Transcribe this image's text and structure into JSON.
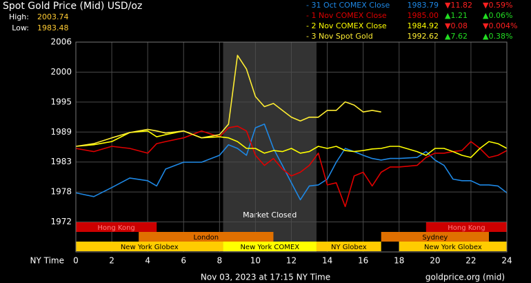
{
  "chart_data": {
    "type": "line",
    "title": "Spot Gold Price (Mid) USD/oz",
    "high": {
      "label": "High:",
      "value": 2003.74
    },
    "low": {
      "label": "Low:",
      "value": 1983.48
    },
    "x_label": "NY Time",
    "footer": "Nov 03, 2023 at 17:15 NY Time",
    "source": "goldprice.org (mid)",
    "xlim": [
      0,
      24
    ],
    "xticks": [
      0,
      2,
      4,
      6,
      8,
      10,
      12,
      14,
      16,
      18,
      20,
      22,
      24
    ],
    "ylim": [
      1966.33,
      2006
    ],
    "yticks": [
      {
        "value": 2006,
        "label": "2006"
      },
      {
        "value": 2000.33,
        "label": "2000"
      },
      {
        "value": 1994.67,
        "label": "1995"
      },
      {
        "value": 1989,
        "label": "1989"
      },
      {
        "value": 1983.33,
        "label": "1983"
      },
      {
        "value": 1977.67,
        "label": "1978"
      },
      {
        "value": 1972,
        "label": "1972"
      }
    ],
    "grid": true,
    "closed": {
      "label": "Market Closed",
      "start": 8.2,
      "end": 13.4,
      "color": "#333333"
    },
    "sessions": [
      {
        "label": "Hong Kong",
        "start": 0,
        "end": 4.5,
        "row": 0,
        "color": "#cc0000"
      },
      {
        "label": "Hong Kong",
        "start": 19.5,
        "end": 24,
        "row": 0,
        "color": "#cc0000"
      },
      {
        "label": "London",
        "start": 3.5,
        "end": 11,
        "row": 1,
        "color": "#e07000"
      },
      {
        "label": "Sydney",
        "start": 17,
        "end": 23,
        "row": 1,
        "color": "#e07000"
      },
      {
        "label": "New York Globex",
        "start": 0,
        "end": 8.2,
        "row": 2,
        "color": "#ffcc00"
      },
      {
        "label": "New York COMEX",
        "start": 8.2,
        "end": 13.4,
        "row": 2,
        "color": "#ffff00"
      },
      {
        "label": "NY Globex",
        "start": 13.4,
        "end": 17,
        "row": 2,
        "color": "#ffcc00"
      },
      {
        "label": "New York Globex",
        "start": 18,
        "end": 24,
        "row": 2,
        "color": "#ffcc00"
      }
    ],
    "x": [
      0,
      1,
      2,
      3,
      4,
      4.5,
      5,
      6,
      7,
      8,
      8.5,
      9,
      9.5,
      10,
      10.5,
      11,
      11.5,
      12,
      12.5,
      13,
      13.5,
      14,
      14.5,
      15,
      15.5,
      16,
      16.5,
      17,
      17.5,
      18,
      19,
      19.5,
      20,
      20.5,
      21,
      21.5,
      22,
      22.5,
      23,
      23.5,
      24
    ],
    "series": [
      {
        "name": "- 31 Oct COMEX Close",
        "color": "#1e88e5",
        "price": "1983.79",
        "change": "▼11.82",
        "change_color": "#ff2020",
        "pct": "▼0.59%",
        "pct_color": "#ff2020",
        "values": [
          1977.5,
          1976.8,
          1978.5,
          1980.3,
          1979.8,
          1978.8,
          1982.0,
          1983.3,
          1983.3,
          1984.6,
          1986.6,
          1985.9,
          1984.6,
          1989.8,
          1990.5,
          1985.9,
          1982.7,
          1979.4,
          1976.2,
          1978.8,
          1979.0,
          1980.1,
          1983.3,
          1985.9,
          1985.3,
          1984.6,
          1984.0,
          1983.7,
          1984.0,
          1984.0,
          1984.2,
          1985.3,
          1983.7,
          1982.7,
          1980.1,
          1979.8,
          1979.8,
          1979.0,
          1979.0,
          1978.8,
          1977.5
        ]
      },
      {
        "name": "- 1 Nov COMEX Close",
        "color": "#e00000",
        "price": "1985.00",
        "change": "▲1.21",
        "change_color": "#22dd22",
        "pct": "▲0.06%",
        "pct_color": "#22dd22",
        "values": [
          1985.9,
          1985.3,
          1986.3,
          1985.9,
          1985.0,
          1986.8,
          1987.2,
          1987.9,
          1989.2,
          1988.1,
          1989.8,
          1990.1,
          1989.2,
          1984.6,
          1982.7,
          1984.0,
          1982.0,
          1980.7,
          1981.4,
          1982.7,
          1985.0,
          1979.0,
          1979.4,
          1974.9,
          1980.7,
          1981.4,
          1978.8,
          1981.4,
          1982.4,
          1982.4,
          1982.7,
          1984.2,
          1985.0,
          1985.0,
          1985.3,
          1985.5,
          1987.2,
          1985.9,
          1984.2,
          1984.6,
          1985.5
        ]
      },
      {
        "name": "- 2 Nov COMEX Close",
        "color": "#ffff00",
        "price": "1984.92",
        "change": "▼0.08",
        "change_color": "#ff2020",
        "pct": "▼0.004%",
        "pct_color": "#ff2020",
        "values": [
          1986.3,
          1986.6,
          1987.2,
          1988.9,
          1989.2,
          1988.1,
          1988.5,
          1989.2,
          1987.9,
          1988.1,
          1987.9,
          1987.2,
          1985.9,
          1985.9,
          1985.0,
          1985.5,
          1985.3,
          1985.9,
          1985.0,
          1985.3,
          1986.3,
          1985.9,
          1986.3,
          1985.5,
          1985.3,
          1985.5,
          1985.8,
          1985.9,
          1986.3,
          1986.3,
          1985.3,
          1984.6,
          1985.9,
          1985.9,
          1985.3,
          1984.6,
          1984.2,
          1985.9,
          1987.2,
          1986.8,
          1985.9
        ]
      },
      {
        "name": "- 3 Nov Spot Gold",
        "color": "#ffee33",
        "price": "1992.62",
        "change": "▲7.62",
        "change_color": "#22dd22",
        "pct": "▲0.38%",
        "pct_color": "#22dd22",
        "values": [
          1986.3,
          1986.8,
          1987.9,
          1988.9,
          1989.5,
          1989.2,
          1988.8,
          1989.2,
          1987.9,
          1988.5,
          1990.5,
          2003.5,
          2000.9,
          1995.7,
          1993.8,
          1994.4,
          1993.1,
          1991.8,
          1991.1,
          1991.8,
          1991.8,
          1993.1,
          1993.1,
          1994.7,
          1994.1,
          1992.8,
          1993.1,
          1992.8,
          null,
          null,
          null,
          null,
          null,
          null,
          null,
          null,
          null,
          null,
          null,
          null,
          null
        ]
      }
    ]
  }
}
